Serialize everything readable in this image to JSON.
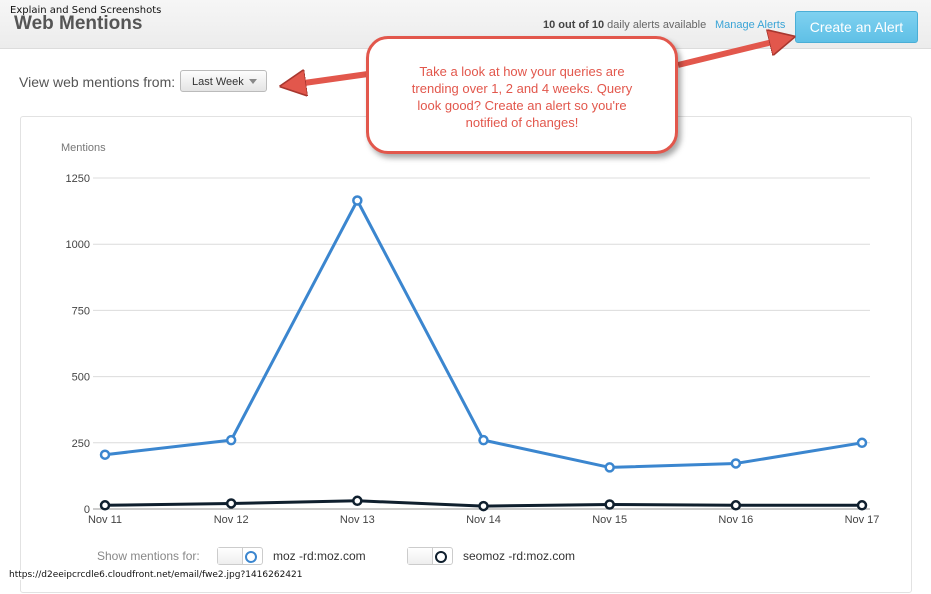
{
  "overlay": {
    "extension_label": "Explain and Send Screenshots",
    "url": "https://d2eeipcrcdle6.cloudfront.net/email/fwe2.jpg?1416262421"
  },
  "header": {
    "title": "Web Mentions",
    "alerts_count_bold": "10 out of 10",
    "alerts_count_rest": " daily alerts available",
    "manage_alerts": "Manage Alerts",
    "create_alert": "Create an Alert"
  },
  "filter": {
    "label": "View web mentions from:",
    "selected_period": "Last Week"
  },
  "annotation": {
    "text": "Take a look at how your queries are trending over 1, 2 and 4 weeks. Query look good? Create an alert so you're notified of changes!",
    "color": "#e2574c"
  },
  "legend": {
    "label": "Show mentions for:",
    "series": [
      {
        "name": "moz -rd:moz.com",
        "color": "#3b86cf"
      },
      {
        "name": "seomoz -rd:moz.com",
        "color": "#0f1f2e"
      }
    ]
  },
  "chart_data": {
    "type": "line",
    "ylabel": "Mentions",
    "x": [
      "Nov 11",
      "Nov 12",
      "Nov 13",
      "Nov 14",
      "Nov 15",
      "Nov 16",
      "Nov 17"
    ],
    "yticks": [
      0,
      250,
      500,
      750,
      1000,
      1250
    ],
    "ylim": [
      0,
      1250
    ],
    "grid": true,
    "series": [
      {
        "name": "moz -rd:moz.com",
        "color": "#3b86cf",
        "values": [
          205,
          260,
          1165,
          260,
          157,
          172,
          250
        ]
      },
      {
        "name": "seomoz -rd:moz.com",
        "color": "#0f1f2e",
        "values": [
          14,
          21,
          31,
          11,
          17,
          14,
          14
        ]
      }
    ]
  }
}
